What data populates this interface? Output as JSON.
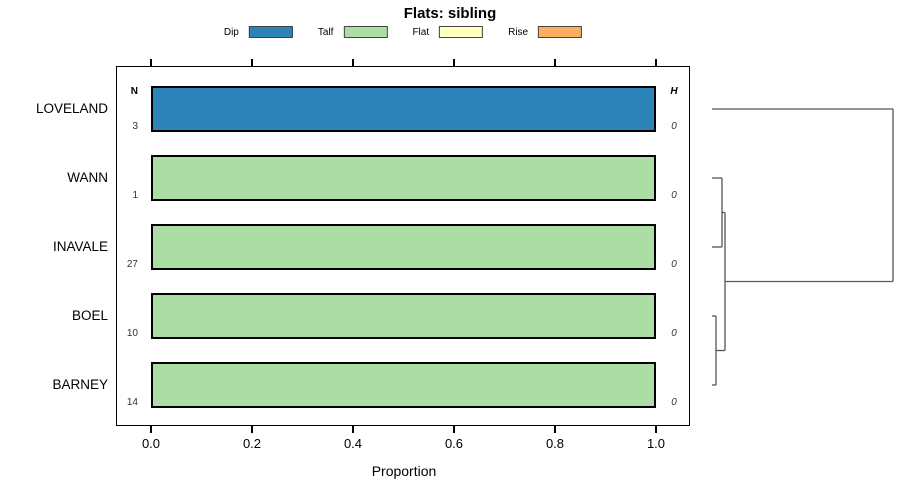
{
  "window": {
    "background": "#ffffff"
  },
  "chart_data": {
    "type": "bar",
    "orientation": "horizontal",
    "title": "Flats: sibling",
    "xlabel": "Proportion",
    "xlim": [
      0,
      1
    ],
    "xticks": [
      "0.0",
      "0.2",
      "0.4",
      "0.6",
      "0.8",
      "1.0"
    ],
    "grid": false,
    "legend_position": "top-center",
    "legend": [
      {
        "label": "Dip",
        "color": "#2B83BA"
      },
      {
        "label": "Talf",
        "color": "#ABDDA4"
      },
      {
        "label": "Flat",
        "color": "#FFFFBF"
      },
      {
        "label": "Rise",
        "color": "#FDAE61"
      }
    ],
    "left_column_header": "N",
    "right_column_header": "H",
    "rows": [
      {
        "site": "LOVELAND",
        "n": "3",
        "h": "0",
        "category": "Dip",
        "proportion": 1.0
      },
      {
        "site": "WANN",
        "n": "1",
        "h": "0",
        "category": "Talf",
        "proportion": 1.0
      },
      {
        "site": "INAVALE",
        "n": "27",
        "h": "0",
        "category": "Talf",
        "proportion": 1.0
      },
      {
        "site": "BOEL",
        "n": "10",
        "h": "0",
        "category": "Talf",
        "proportion": 1.0
      },
      {
        "site": "BARNEY",
        "n": "14",
        "h": "0",
        "category": "Talf",
        "proportion": 1.0
      }
    ],
    "dendrogram": {
      "structure": "(LOVELAND,((WANN,INAVALE),(BOEL,BARNEY)))",
      "line_color": "#555555",
      "segments": [
        [
          712,
          109,
          893,
          109
        ],
        [
          893,
          109,
          893,
          281.5
        ],
        [
          725,
          281.5,
          893,
          281.5
        ],
        [
          725,
          212.5,
          725,
          350.5
        ],
        [
          722,
          212.5,
          725,
          212.5
        ],
        [
          712,
          178,
          722,
          178
        ],
        [
          712,
          247,
          722,
          247
        ],
        [
          722,
          178,
          722,
          247
        ],
        [
          716,
          350.5,
          725,
          350.5
        ],
        [
          712,
          316,
          716,
          316
        ],
        [
          712,
          385,
          716,
          385
        ],
        [
          716,
          316,
          716,
          385
        ]
      ]
    },
    "colors": {
      "axis": "#000000",
      "bar_border": "#000000",
      "value_text": "#333333"
    }
  }
}
